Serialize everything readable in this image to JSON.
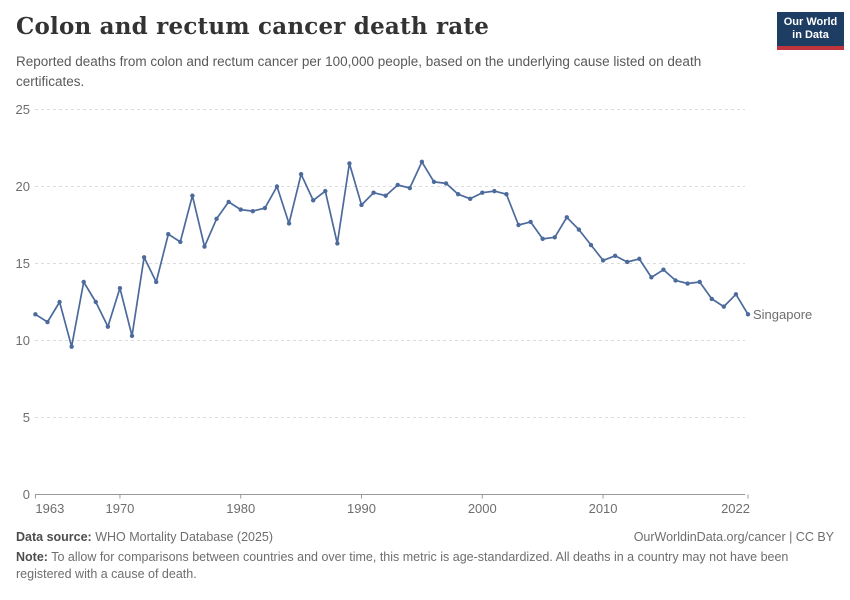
{
  "header": {
    "title": "Colon and rectum cancer death rate",
    "subtitle": "Reported deaths from colon and rectum cancer per 100,000 people, based on the underlying cause listed on death certificates.",
    "logo": {
      "line1": "Our World",
      "line2": "in Data"
    }
  },
  "chart_data": {
    "type": "line",
    "title": "Colon and rectum cancer death rate",
    "xlabel": "",
    "ylabel": "",
    "ylim": [
      0,
      25
    ],
    "xlim": [
      1963,
      2022
    ],
    "grid": true,
    "y_ticks": [
      0,
      5,
      10,
      15,
      20,
      25
    ],
    "x_ticks": [
      1963,
      1970,
      1980,
      1990,
      2000,
      2010,
      2022
    ],
    "legend_position": "end-of-line-label",
    "series": [
      {
        "name": "Singapore",
        "color": "#4C6A9C",
        "x": [
          1963,
          1964,
          1965,
          1966,
          1967,
          1968,
          1969,
          1970,
          1971,
          1972,
          1973,
          1974,
          1975,
          1976,
          1977,
          1978,
          1979,
          1980,
          1981,
          1982,
          1983,
          1984,
          1985,
          1986,
          1987,
          1988,
          1989,
          1990,
          1991,
          1992,
          1993,
          1994,
          1995,
          1996,
          1997,
          1998,
          1999,
          2000,
          2001,
          2002,
          2003,
          2004,
          2005,
          2006,
          2007,
          2008,
          2009,
          2010,
          2011,
          2012,
          2013,
          2014,
          2015,
          2016,
          2017,
          2018,
          2019,
          2020,
          2021,
          2022
        ],
        "values": [
          11.7,
          11.2,
          12.5,
          9.6,
          13.8,
          12.5,
          10.9,
          13.4,
          10.3,
          15.4,
          13.8,
          16.9,
          16.4,
          19.4,
          16.1,
          17.9,
          19.0,
          18.5,
          18.4,
          18.6,
          20.0,
          17.6,
          20.8,
          19.1,
          19.7,
          16.3,
          21.5,
          18.8,
          19.6,
          19.4,
          20.1,
          19.9,
          21.6,
          20.3,
          20.2,
          19.5,
          19.2,
          19.6,
          19.7,
          19.5,
          17.5,
          17.7,
          16.6,
          16.7,
          18.0,
          17.2,
          16.2,
          15.2,
          15.5,
          15.1,
          15.3,
          14.1,
          14.6,
          13.9,
          13.7,
          13.8,
          12.7,
          12.2,
          13.0,
          11.7
        ]
      }
    ]
  },
  "footer": {
    "datasource_label": "Data source:",
    "datasource_text": " WHO Mortality Database (2025)",
    "link": "OurWorldinData.org/cancer | CC BY",
    "note_label": "Note:",
    "note_text": " To allow for comparisons between countries and over time, this metric is age-standardized. All deaths in a country may not have been registered with a cause of death."
  },
  "colors": {
    "accent": "#4C6A9C",
    "logo_bg": "#1d3d63",
    "logo_red": "#c0353d",
    "grid": "#dcdcdc",
    "axis": "#999999",
    "tick_text": "#6e6e6e"
  }
}
